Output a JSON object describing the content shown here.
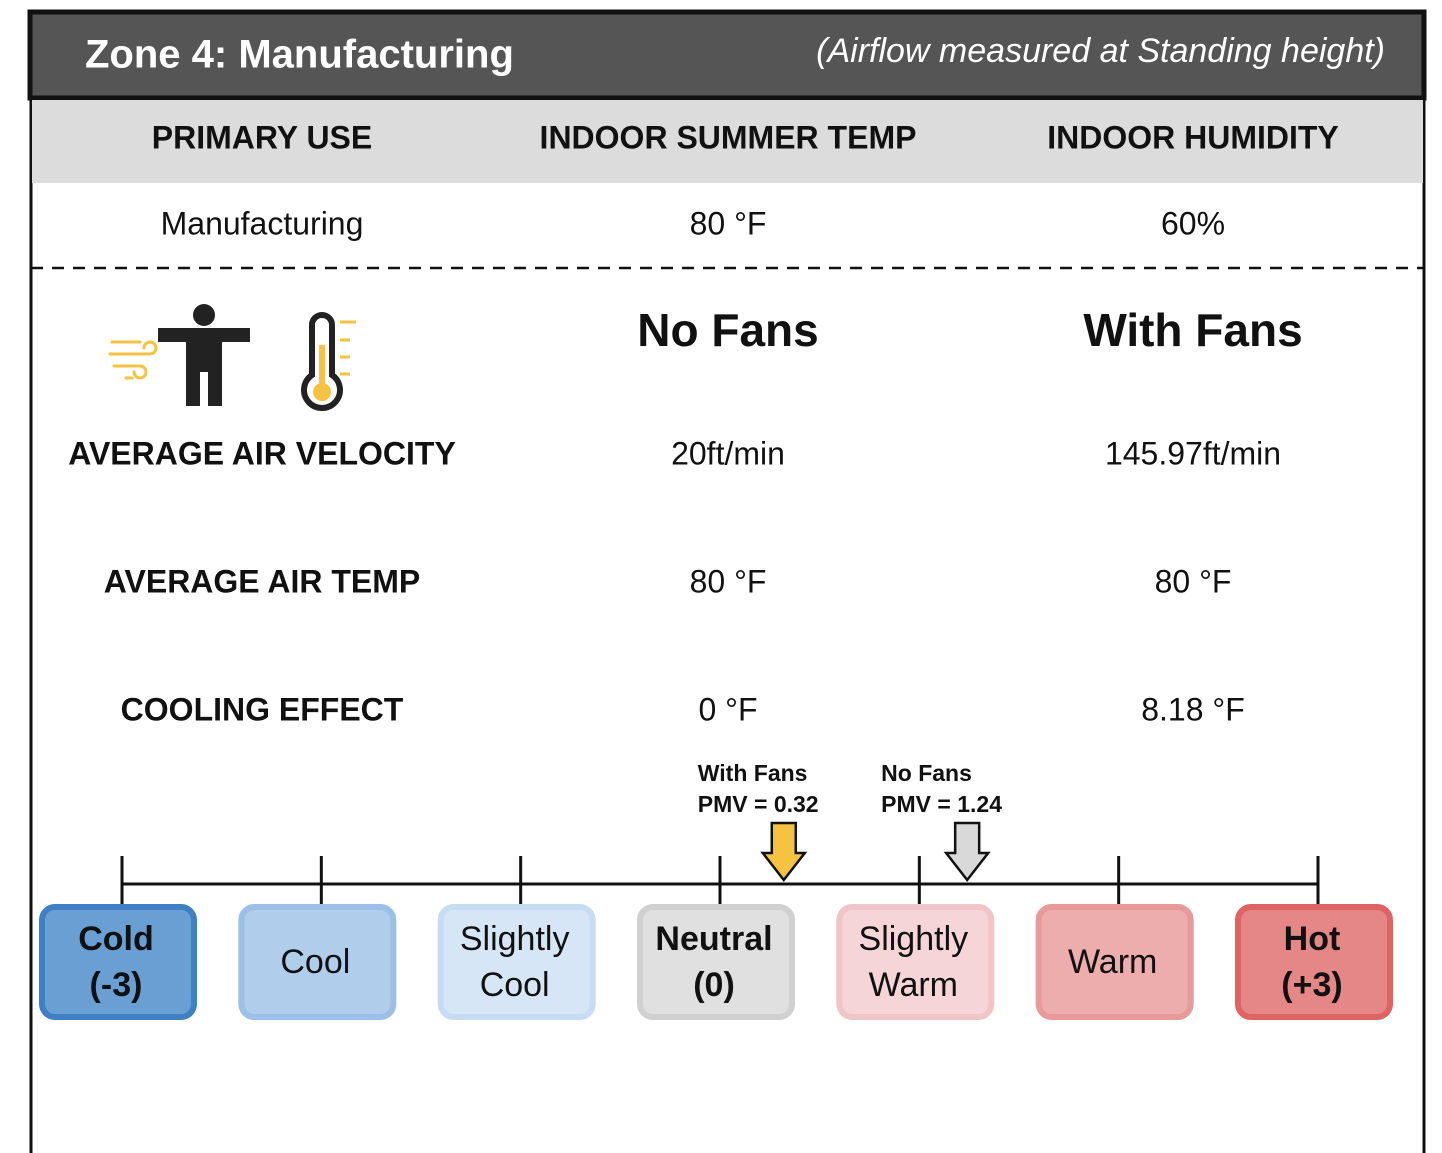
{
  "header": {
    "title": "Zone 4: Manufacturing",
    "subtitle": "(Airflow measured at Standing height)"
  },
  "table": {
    "headers": [
      "PRIMARY USE",
      "INDOOR SUMMER TEMP",
      "INDOOR HUMIDITY"
    ],
    "rows": [
      [
        "Manufacturing",
        "80 °F",
        "60%"
      ]
    ]
  },
  "comparison": {
    "columns": [
      "No Fans",
      "With Fans"
    ],
    "rows": [
      {
        "label": "AVERAGE AIR VELOCITY",
        "values": [
          "20ft/min",
          "145.97ft/min"
        ]
      },
      {
        "label": "AVERAGE AIR TEMP",
        "values": [
          "80 °F",
          "80 °F"
        ]
      },
      {
        "label": "COOLING EFFECT",
        "values": [
          "0 °F",
          "8.18 °F"
        ]
      }
    ]
  },
  "scale": {
    "range": [
      -3,
      3
    ],
    "ticks": [
      -3,
      -2,
      -1,
      0,
      1,
      2,
      3
    ],
    "categories": [
      {
        "lines": [
          "Cold",
          "(-3)"
        ],
        "fill": "#6a9fd4",
        "stroke": "#3f7fc4",
        "bold": true
      },
      {
        "lines": [
          "Cool"
        ],
        "fill": "#b0cdec",
        "stroke": "#9bbfe6",
        "bold": false
      },
      {
        "lines": [
          "Slightly",
          "Cool"
        ],
        "fill": "#d6e6f6",
        "stroke": "#c6dcf2",
        "bold": false
      },
      {
        "lines": [
          "Neutral",
          "(0)"
        ],
        "fill": "#e0e0e0",
        "stroke": "#d0d0d0",
        "bold": true
      },
      {
        "lines": [
          "Slightly",
          "Warm"
        ],
        "fill": "#f5d5d7",
        "stroke": "#f0c5c8",
        "bold": false
      },
      {
        "lines": [
          "Warm"
        ],
        "fill": "#eeadad",
        "stroke": "#e79a9a",
        "bold": false
      },
      {
        "lines": [
          "Hot",
          "(+3)"
        ],
        "fill": "#e68787",
        "stroke": "#df6363",
        "bold": true
      }
    ],
    "markers": [
      {
        "name": "With Fans",
        "label": "PMV = 0.32",
        "value": 0.32,
        "color": "#f5c242"
      },
      {
        "name": "No Fans",
        "label": "PMV = 1.24",
        "value": 1.24,
        "color": "#d9d9d9"
      }
    ]
  }
}
